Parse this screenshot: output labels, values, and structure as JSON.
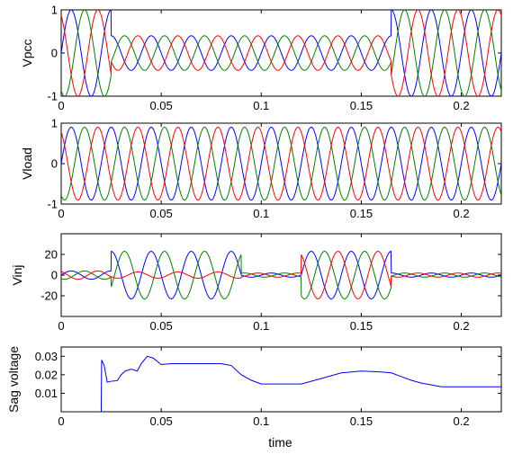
{
  "figure": {
    "xlabel": "time"
  },
  "colors": {
    "axis": "#000000",
    "background": "#ffffff",
    "phase_a": "#0000ff",
    "phase_b": "#008000",
    "phase_c": "#ff0000"
  },
  "chart_data": [
    {
      "type": "line",
      "id": "vpcc",
      "ylabel": "Vpcc",
      "xlim": [
        0,
        0.22
      ],
      "ylim": [
        -1,
        1
      ],
      "xticks": [
        0,
        0.05,
        0.1,
        0.15,
        0.2
      ],
      "xtick_labels": [
        "0",
        "0.05",
        "0.1",
        "0.15",
        "0.2"
      ],
      "yticks": [
        -1,
        0,
        1
      ],
      "ytick_labels": [
        "-1",
        "0",
        "1"
      ],
      "grid": false,
      "model": "three-phase sinusoid, 50 Hz",
      "segments": [
        {
          "t_start": 0,
          "t_end": 0.025,
          "amplitude": 1.0
        },
        {
          "t_start": 0.025,
          "t_end": 0.12,
          "amplitude": 0.4
        },
        {
          "t_start": 0.12,
          "t_end": 0.165,
          "amplitude": 0.4
        },
        {
          "t_start": 0.165,
          "t_end": 0.22,
          "amplitude": 1.0
        }
      ],
      "series": [
        {
          "phase": "a",
          "color": "#0000ff"
        },
        {
          "phase": "b",
          "color": "#008000"
        },
        {
          "phase": "c",
          "color": "#ff0000"
        }
      ]
    },
    {
      "type": "line",
      "id": "vload",
      "ylabel": "Vload",
      "xlim": [
        0,
        0.22
      ],
      "ylim": [
        -1,
        1
      ],
      "xticks": [
        0,
        0.05,
        0.1,
        0.15,
        0.2
      ],
      "xtick_labels": [
        "0",
        "0.05",
        "0.1",
        "0.15",
        "0.2"
      ],
      "yticks": [
        -1,
        0,
        1
      ],
      "ytick_labels": [
        "-1",
        "0",
        "1"
      ],
      "grid": false,
      "model": "three-phase sinusoid, 50 Hz",
      "segments": [
        {
          "t_start": 0,
          "t_end": 0.22,
          "amplitude": 0.9
        }
      ],
      "series": [
        {
          "phase": "a",
          "color": "#0000ff"
        },
        {
          "phase": "b",
          "color": "#008000"
        },
        {
          "phase": "c",
          "color": "#ff0000"
        }
      ]
    },
    {
      "type": "line",
      "id": "vinj",
      "ylabel": "Vinj",
      "xlim": [
        0,
        0.22
      ],
      "ylim": [
        -40,
        40
      ],
      "xticks": [
        0,
        0.05,
        0.1,
        0.15,
        0.2
      ],
      "xtick_labels": [
        "0",
        "0.05",
        "0.1",
        "0.15",
        "0.2"
      ],
      "yticks": [
        -20,
        0,
        20
      ],
      "ytick_labels": [
        "-20",
        "0",
        "20"
      ],
      "grid": false,
      "model": "three-phase sinusoid, 50 Hz",
      "segments": [
        {
          "t_start": 0,
          "t_end": 0.025,
          "amplitude": 4
        },
        {
          "t_start": 0.025,
          "t_end": 0.09,
          "amplitude": 23,
          "red_amplitude": 3
        },
        {
          "t_start": 0.09,
          "t_end": 0.12,
          "amplitude": 2
        },
        {
          "t_start": 0.12,
          "t_end": 0.165,
          "amplitude": 23
        },
        {
          "t_start": 0.165,
          "t_end": 0.22,
          "amplitude": 2
        }
      ],
      "series": [
        {
          "phase": "a",
          "color": "#0000ff"
        },
        {
          "phase": "b",
          "color": "#008000"
        },
        {
          "phase": "c",
          "color": "#ff0000"
        }
      ]
    },
    {
      "type": "line",
      "id": "sag",
      "ylabel": "Sag voltage",
      "xlim": [
        0,
        0.22
      ],
      "ylim": [
        0,
        0.035
      ],
      "xticks": [
        0,
        0.05,
        0.1,
        0.15,
        0.2
      ],
      "xtick_labels": [
        "0",
        "0.05",
        "0.1",
        "0.15",
        "0.2"
      ],
      "yticks": [
        0.01,
        0.02,
        0.03
      ],
      "ytick_labels": [
        "0.01",
        "0.02",
        "0.03"
      ],
      "grid": false,
      "xlabel": "time",
      "series": [
        {
          "color": "#0000ff",
          "x": [
            0,
            0.02,
            0.0202,
            0.0215,
            0.023,
            0.025,
            0.028,
            0.03,
            0.032,
            0.035,
            0.038,
            0.04,
            0.043,
            0.046,
            0.05,
            0.055,
            0.06,
            0.07,
            0.08,
            0.085,
            0.09,
            0.095,
            0.1,
            0.11,
            0.12,
            0.13,
            0.14,
            0.15,
            0.16,
            0.165,
            0.17,
            0.175,
            0.18,
            0.185,
            0.19,
            0.2,
            0.21,
            0.22
          ],
          "y": [
            0,
            0,
            0.028,
            0.025,
            0.016,
            0.0165,
            0.0168,
            0.02,
            0.022,
            0.023,
            0.022,
            0.026,
            0.03,
            0.029,
            0.0255,
            0.026,
            0.026,
            0.026,
            0.026,
            0.025,
            0.02,
            0.017,
            0.015,
            0.015,
            0.015,
            0.018,
            0.021,
            0.022,
            0.0215,
            0.021,
            0.019,
            0.017,
            0.0155,
            0.0145,
            0.0135,
            0.0135,
            0.0135,
            0.0135
          ]
        }
      ]
    }
  ]
}
